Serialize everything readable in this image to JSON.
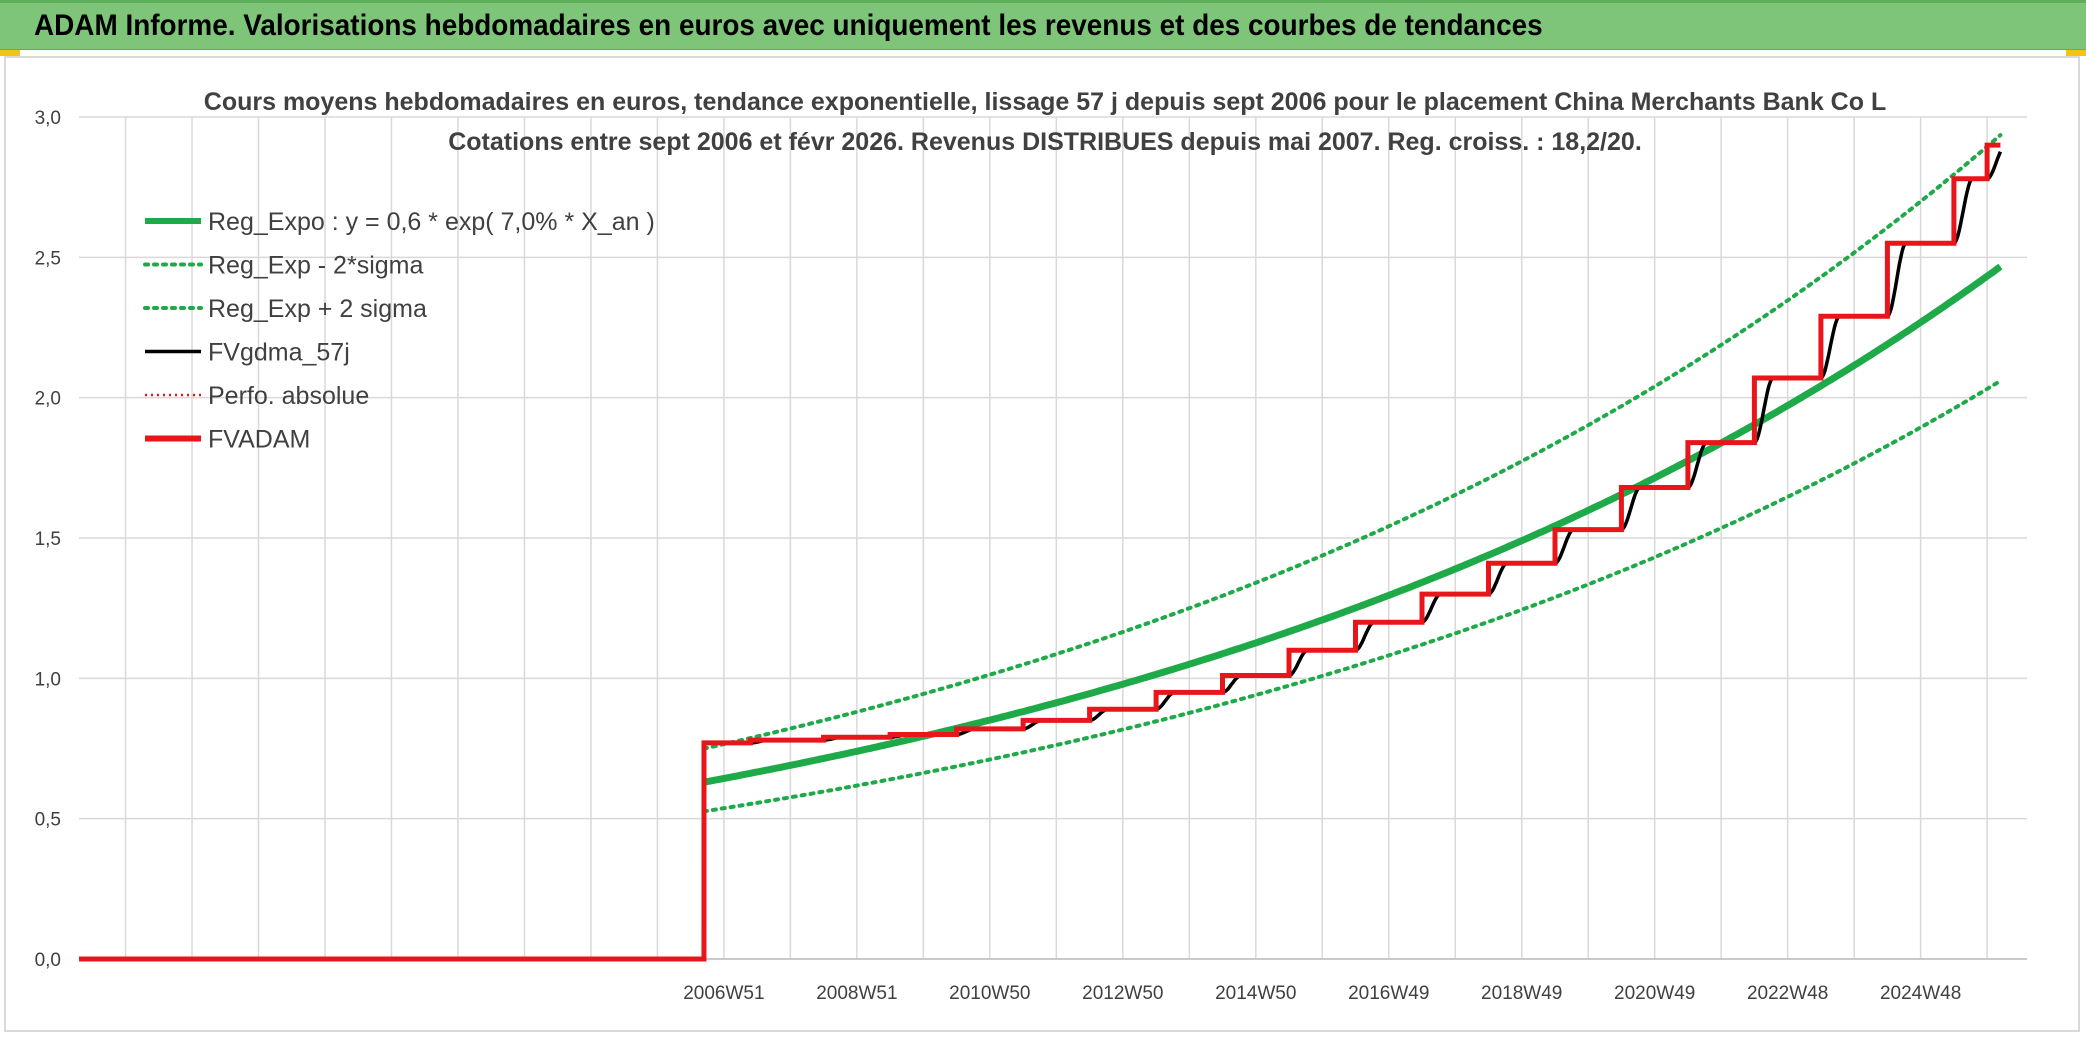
{
  "banner": {
    "title": "ADAM Informe. Valorisations hebdomadaires en euros avec uniquement les revenus et des courbes de tendances"
  },
  "colors": {
    "banner_bg": "#7ec57a",
    "corner_accent": "#f0c419",
    "reg_expo": "#1faa4a",
    "fvgdma": "#000000",
    "fvadam": "#e8161b",
    "perfo": "#e8161b",
    "grid": "#d9d9d9",
    "text": "#404040"
  },
  "chart_data": {
    "type": "line",
    "title": "Cours moyens hebdomadaires en euros, tendance exponentielle, lissage 57 j depuis sept 2006 pour le placement China Merchants Bank Co L",
    "subtitle": "Cotations entre sept 2006 et févr 2026. Revenus DISTRIBUES depuis mai 2007. Reg. croiss. : 18,2/20.",
    "xlabel": "",
    "ylabel": "",
    "ylim": [
      0,
      3
    ],
    "y_ticks": [
      "0,0",
      "0,5",
      "1,0",
      "1,5",
      "2,0",
      "2,5",
      "3,0"
    ],
    "x_tick_labels": [
      "2006W51",
      "2008W51",
      "2010W50",
      "2012W50",
      "2014W50",
      "2016W49",
      "2018W49",
      "2020W49",
      "2022W48",
      "2024W48"
    ],
    "x_label_years": [
      2007.0,
      2009.0,
      2011.0,
      2013.0,
      2015.0,
      2017.0,
      2019.0,
      2021.0,
      2023.0,
      2025.0
    ],
    "xlim": [
      1997.3,
      2026.6
    ],
    "x_grid_step_years": 1,
    "grid": true,
    "legend_position": "top-left",
    "data_start_year": 2006.7,
    "data_end_year": 2026.2,
    "regression": {
      "a": 0.63,
      "rate": 0.07,
      "sigma_factor_low": 0.835,
      "sigma_factor_high": 1.19
    },
    "fvadam_steps": [
      {
        "from": 2006.7,
        "value": 0.77
      },
      {
        "from": 2007.4,
        "value": 0.78
      },
      {
        "from": 2008.5,
        "value": 0.79
      },
      {
        "from": 2009.5,
        "value": 0.8
      },
      {
        "from": 2010.5,
        "value": 0.82
      },
      {
        "from": 2011.5,
        "value": 0.85
      },
      {
        "from": 2012.5,
        "value": 0.89
      },
      {
        "from": 2013.5,
        "value": 0.95
      },
      {
        "from": 2014.5,
        "value": 1.01
      },
      {
        "from": 2015.5,
        "value": 1.1
      },
      {
        "from": 2016.5,
        "value": 1.2
      },
      {
        "from": 2017.5,
        "value": 1.3
      },
      {
        "from": 2018.5,
        "value": 1.41
      },
      {
        "from": 2019.5,
        "value": 1.53
      },
      {
        "from": 2020.5,
        "value": 1.68
      },
      {
        "from": 2021.5,
        "value": 1.84
      },
      {
        "from": 2022.5,
        "value": 2.07
      },
      {
        "from": 2023.5,
        "value": 2.29
      },
      {
        "from": 2024.5,
        "value": 2.55
      },
      {
        "from": 2025.5,
        "value": 2.78
      },
      {
        "from": 2026.0,
        "value": 2.9
      }
    ],
    "series": [
      {
        "name": "Reg_Expo : y = 0,6 * exp( 7,0% *  X_an )",
        "style": "solid-thick",
        "color": "#1faa4a"
      },
      {
        "name": "Reg_Exp - 2*sigma",
        "style": "dotted",
        "color": "#1faa4a"
      },
      {
        "name": "Reg_Exp + 2 sigma",
        "style": "dotted",
        "color": "#1faa4a"
      },
      {
        "name": "FVgdma_57j",
        "style": "solid",
        "color": "#000000"
      },
      {
        "name": "Perfo. absolue",
        "style": "dotted-thin",
        "color": "#e8161b"
      },
      {
        "name": "FVADAM",
        "style": "solid-thick",
        "color": "#e8161b"
      }
    ]
  }
}
